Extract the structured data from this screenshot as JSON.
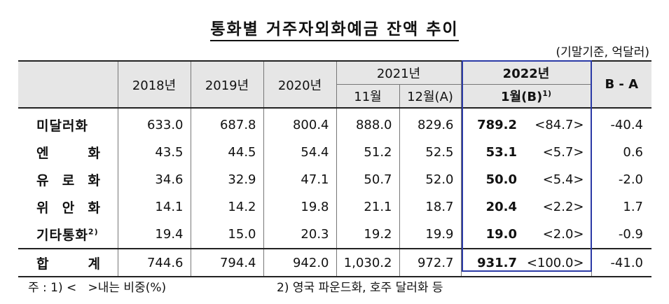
{
  "title": "통화별 거주자외화예금 잔액 추이",
  "unit": "(기말기준, 억달러)",
  "header": {
    "y2018": "2018년",
    "y2019": "2019년",
    "y2020": "2020년",
    "y2021": "2021년",
    "m11": "11월",
    "m12": "12월(A)",
    "y2022": "2022년",
    "m1": "1월(B)",
    "m1_note": "1)",
    "diff": "B - A"
  },
  "rows": [
    {
      "label": "미달러화",
      "note": "",
      "v2018": "633.0",
      "v2019": "687.8",
      "v2020": "800.4",
      "nov": "888.0",
      "dec": "829.6",
      "jan": "789.2",
      "share": "<84.7>",
      "diff": "-40.4"
    },
    {
      "label": "엔  화",
      "note": "",
      "v2018": "43.5",
      "v2019": "44.5",
      "v2020": "54.4",
      "nov": "51.2",
      "dec": "52.5",
      "jan": "53.1",
      "share": "<5.7>",
      "diff": "0.6"
    },
    {
      "label": "유로화",
      "note": "",
      "v2018": "34.6",
      "v2019": "32.9",
      "v2020": "47.1",
      "nov": "50.7",
      "dec": "52.0",
      "jan": "50.0",
      "share": "<5.4>",
      "diff": "-2.0"
    },
    {
      "label": "위안화",
      "note": "",
      "v2018": "14.1",
      "v2019": "14.2",
      "v2020": "19.8",
      "nov": "21.1",
      "dec": "18.7",
      "jan": "20.4",
      "share": "<2.2>",
      "diff": "1.7"
    },
    {
      "label": "기타통화",
      "note": "2)",
      "v2018": "19.4",
      "v2019": "15.0",
      "v2020": "20.3",
      "nov": "19.2",
      "dec": "19.9",
      "jan": "19.0",
      "share": "<2.0>",
      "diff": "-0.9"
    }
  ],
  "total": {
    "label_a": "합",
    "label_b": "계",
    "v2018": "744.6",
    "v2019": "794.4",
    "v2020": "942.0",
    "nov": "1,030.2",
    "dec": "972.7",
    "jan": "931.7",
    "share": "<100.0>",
    "diff": "-41.0"
  },
  "notes": {
    "n1": "주 : 1) <   >내는 비중(%)",
    "n2": "2) 영국 파운드화, 호주 달러화 등"
  }
}
